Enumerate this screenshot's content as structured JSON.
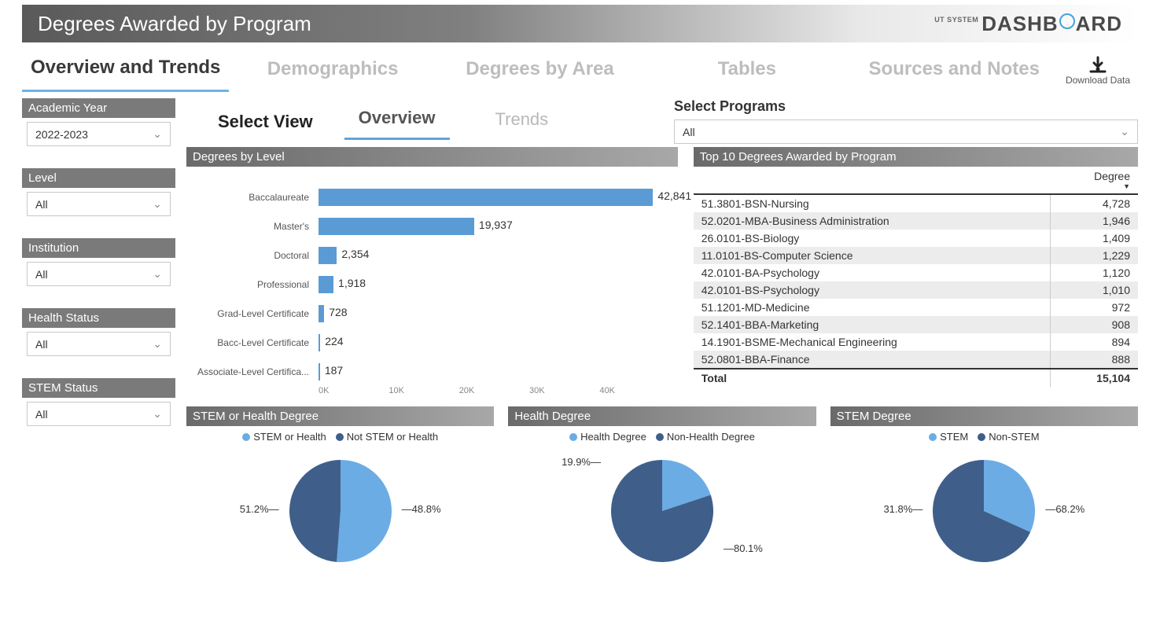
{
  "colors": {
    "bar": "#5b9bd5",
    "pie_light": "#6cace4",
    "pie_dark": "#3f5f8a",
    "panel_grad_start": "#6a6a6a",
    "panel_grad_end": "#a8a8a8"
  },
  "header": {
    "title": "Degrees Awarded by Program",
    "logo_prefix": "UT SYSTEM",
    "logo_text_1": "DASHB",
    "logo_text_2": "ARD"
  },
  "main_tabs": [
    {
      "label": "Overview and Trends",
      "active": true
    },
    {
      "label": "Demographics",
      "active": false
    },
    {
      "label": "Degrees by Area",
      "active": false
    },
    {
      "label": "Tables",
      "active": false
    },
    {
      "label": "Sources and Notes",
      "active": false
    }
  ],
  "download_label": "Download Data",
  "filters": [
    {
      "title": "Academic Year",
      "value": "2022-2023"
    },
    {
      "title": "Level",
      "value": "All"
    },
    {
      "title": "Institution",
      "value": "All"
    },
    {
      "title": "Health Status",
      "value": "All"
    },
    {
      "title": "STEM Status",
      "value": "All"
    }
  ],
  "select_view": {
    "label": "Select View",
    "tabs": [
      {
        "label": "Overview",
        "active": true
      },
      {
        "label": "Trends",
        "active": false
      }
    ]
  },
  "select_programs": {
    "title": "Select Programs",
    "value": "All"
  },
  "degrees_by_level": {
    "title": "Degrees by Level",
    "type": "bar-horizontal",
    "max": 45000,
    "axis_ticks": [
      "0K",
      "10K",
      "20K",
      "30K",
      "40K"
    ],
    "bars": [
      {
        "label": "Baccalaureate",
        "value": 42841,
        "display": "42,841"
      },
      {
        "label": "Master's",
        "value": 19937,
        "display": "19,937"
      },
      {
        "label": "Doctoral",
        "value": 2354,
        "display": "2,354"
      },
      {
        "label": "Professional",
        "value": 1918,
        "display": "1,918"
      },
      {
        "label": "Grad-Level Certificate",
        "value": 728,
        "display": "728"
      },
      {
        "label": "Bacc-Level Certificate",
        "value": 224,
        "display": "224"
      },
      {
        "label": "Associate-Level Certifica...",
        "value": 187,
        "display": "187"
      }
    ]
  },
  "top10": {
    "title": "Top 10 Degrees Awarded by Program",
    "column_header": "Degree",
    "rows": [
      {
        "name": "51.3801-BSN-Nursing",
        "value": "4,728"
      },
      {
        "name": "52.0201-MBA-Business Administration",
        "value": "1,946"
      },
      {
        "name": "26.0101-BS-Biology",
        "value": "1,409"
      },
      {
        "name": "11.0101-BS-Computer Science",
        "value": "1,229"
      },
      {
        "name": "42.0101-BA-Psychology",
        "value": "1,120"
      },
      {
        "name": "42.0101-BS-Psychology",
        "value": "1,010"
      },
      {
        "name": "51.1201-MD-Medicine",
        "value": "972"
      },
      {
        "name": "52.1401-BBA-Marketing",
        "value": "908"
      },
      {
        "name": "14.1901-BSME-Mechanical Engineering",
        "value": "894"
      },
      {
        "name": "52.0801-BBA-Finance",
        "value": "888"
      }
    ],
    "total_label": "Total",
    "total_value": "15,104"
  },
  "pies": [
    {
      "title": "STEM or Health Degree",
      "legend": [
        {
          "label": "STEM or Health",
          "color": "#6cace4"
        },
        {
          "label": "Not STEM or Health",
          "color": "#3f5f8a"
        }
      ],
      "slices": [
        {
          "pct": 51.2,
          "label": "51.2%",
          "color": "#6cace4",
          "label_side": "left"
        },
        {
          "pct": 48.8,
          "label": "48.8%",
          "color": "#3f5f8a",
          "label_side": "right"
        }
      ]
    },
    {
      "title": "Health Degree",
      "legend": [
        {
          "label": "Health Degree",
          "color": "#6cace4"
        },
        {
          "label": "Non-Health Degree",
          "color": "#3f5f8a"
        }
      ],
      "slices": [
        {
          "pct": 19.9,
          "label": "19.9%",
          "color": "#6cace4",
          "label_side": "left"
        },
        {
          "pct": 80.1,
          "label": "80.1%",
          "color": "#3f5f8a",
          "label_side": "right"
        }
      ]
    },
    {
      "title": "STEM Degree",
      "legend": [
        {
          "label": "STEM",
          "color": "#6cace4"
        },
        {
          "label": "Non-STEM",
          "color": "#3f5f8a"
        }
      ],
      "slices": [
        {
          "pct": 31.8,
          "label": "31.8%",
          "color": "#6cace4",
          "label_side": "left"
        },
        {
          "pct": 68.2,
          "label": "68.2%",
          "color": "#3f5f8a",
          "label_side": "right"
        }
      ]
    }
  ]
}
